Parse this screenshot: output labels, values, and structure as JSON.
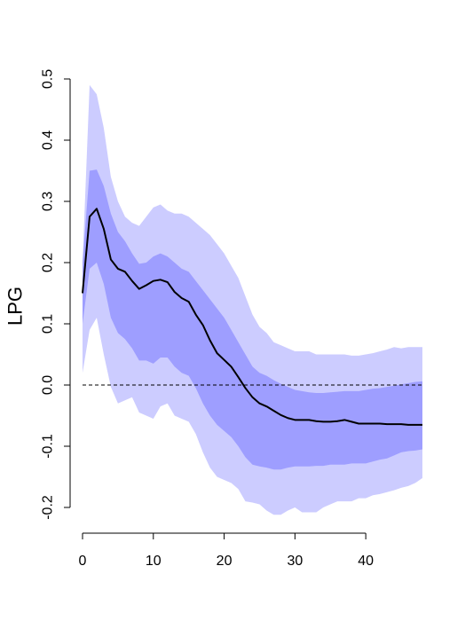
{
  "chart_data": {
    "type": "line",
    "title": "",
    "xlabel": "",
    "ylabel": "LPG",
    "xlim": [
      -2,
      50
    ],
    "ylim": [
      -0.24,
      0.52
    ],
    "x_ticks": [
      0,
      10,
      20,
      30,
      40
    ],
    "y_ticks": [
      -0.2,
      -0.1,
      0.0,
      0.1,
      0.2,
      0.3,
      0.4,
      0.5
    ],
    "y_tick_labels": [
      "-0.2",
      "-0.1",
      "0.0",
      "0.1",
      "0.2",
      "0.3",
      "0.4",
      "0.5"
    ],
    "reference_line": {
      "y": 0.0,
      "style": "dashed"
    },
    "colors": {
      "outer_band": "#ccccff",
      "inner_band": "#9e9eff",
      "line": "#000000",
      "reference": "#000000"
    },
    "x": [
      0,
      1,
      2,
      3,
      4,
      5,
      6,
      7,
      8,
      9,
      10,
      11,
      12,
      13,
      14,
      15,
      16,
      17,
      18,
      19,
      20,
      21,
      22,
      23,
      24,
      25,
      26,
      27,
      28,
      29,
      30,
      31,
      32,
      33,
      34,
      35,
      36,
      37,
      38,
      39,
      40,
      41,
      42,
      43,
      44,
      45,
      46,
      47,
      48
    ],
    "series": [
      {
        "values": [
          0.15,
          0.275,
          0.288,
          0.255,
          0.205,
          0.19,
          0.185,
          0.17,
          0.157,
          0.163,
          0.17,
          0.172,
          0.168,
          0.152,
          0.142,
          0.136,
          0.115,
          0.098,
          0.073,
          0.052,
          0.041,
          0.03,
          0.013,
          -0.005,
          -0.02,
          -0.03,
          -0.035,
          -0.042,
          -0.049,
          -0.054,
          -0.057,
          -0.057,
          -0.057,
          -0.059,
          -0.06,
          -0.06,
          -0.059,
          -0.057,
          -0.06,
          -0.063,
          -0.063,
          -0.063,
          -0.063,
          -0.064,
          -0.064,
          -0.064,
          -0.065,
          -0.065,
          -0.065
        ]
      }
    ],
    "bands": [
      {
        "level": "outer",
        "lower": [
          0.02,
          0.09,
          0.11,
          0.05,
          -0.003,
          -0.03,
          -0.025,
          -0.02,
          -0.045,
          -0.05,
          -0.055,
          -0.035,
          -0.03,
          -0.05,
          -0.055,
          -0.06,
          -0.08,
          -0.11,
          -0.135,
          -0.15,
          -0.155,
          -0.16,
          -0.17,
          -0.19,
          -0.192,
          -0.195,
          -0.205,
          -0.212,
          -0.212,
          -0.205,
          -0.2,
          -0.208,
          -0.208,
          -0.208,
          -0.2,
          -0.195,
          -0.19,
          -0.19,
          -0.19,
          -0.185,
          -0.185,
          -0.18,
          -0.178,
          -0.175,
          -0.172,
          -0.168,
          -0.165,
          -0.16,
          -0.152
        ],
        "upper": [
          0.2,
          0.49,
          0.475,
          0.42,
          0.34,
          0.3,
          0.275,
          0.265,
          0.26,
          0.275,
          0.29,
          0.295,
          0.285,
          0.28,
          0.28,
          0.275,
          0.265,
          0.255,
          0.245,
          0.23,
          0.215,
          0.195,
          0.175,
          0.145,
          0.115,
          0.095,
          0.085,
          0.07,
          0.065,
          0.06,
          0.055,
          0.055,
          0.055,
          0.05,
          0.05,
          0.05,
          0.05,
          0.05,
          0.048,
          0.048,
          0.05,
          0.052,
          0.055,
          0.058,
          0.062,
          0.06,
          0.062,
          0.062,
          0.062
        ]
      },
      {
        "level": "inner",
        "lower": [
          0.1,
          0.19,
          0.2,
          0.165,
          0.11,
          0.085,
          0.075,
          0.06,
          0.04,
          0.04,
          0.035,
          0.045,
          0.045,
          0.03,
          0.02,
          0.015,
          -0.005,
          -0.03,
          -0.05,
          -0.065,
          -0.075,
          -0.085,
          -0.1,
          -0.118,
          -0.13,
          -0.133,
          -0.135,
          -0.138,
          -0.138,
          -0.135,
          -0.133,
          -0.133,
          -0.133,
          -0.132,
          -0.132,
          -0.13,
          -0.13,
          -0.13,
          -0.128,
          -0.128,
          -0.128,
          -0.125,
          -0.122,
          -0.12,
          -0.115,
          -0.11,
          -0.108,
          -0.107,
          -0.105
        ],
        "upper": [
          0.2,
          0.35,
          0.352,
          0.325,
          0.28,
          0.25,
          0.235,
          0.215,
          0.198,
          0.2,
          0.21,
          0.215,
          0.21,
          0.2,
          0.19,
          0.185,
          0.17,
          0.155,
          0.14,
          0.125,
          0.11,
          0.09,
          0.07,
          0.05,
          0.03,
          0.02,
          0.015,
          0.008,
          0.002,
          -0.003,
          -0.008,
          -0.01,
          -0.012,
          -0.013,
          -0.013,
          -0.012,
          -0.011,
          -0.01,
          -0.01,
          -0.01,
          -0.008,
          -0.006,
          -0.005,
          -0.003,
          -0.001,
          0.001,
          0.003,
          0.005,
          0.006
        ]
      }
    ],
    "grid": false,
    "legend": "none"
  }
}
